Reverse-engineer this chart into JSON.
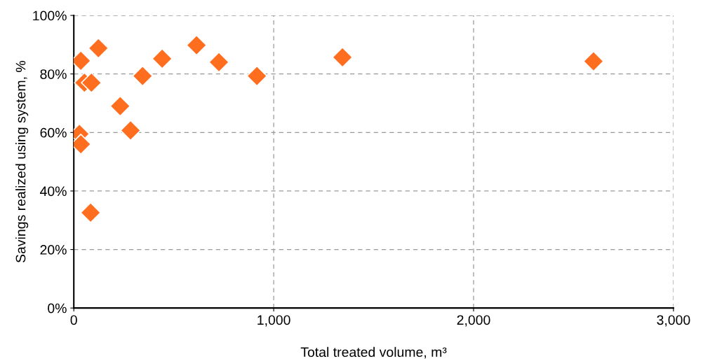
{
  "chart_data": {
    "type": "scatter",
    "xlabel": "Total treated volume, m³",
    "ylabel": "Savings realized using system, %",
    "series": [
      {
        "color": "#ff6d1f",
        "x": [
          35,
          123,
          614,
          442,
          726,
          1344,
          2600,
          916,
          344,
          53,
          88,
          232,
          284,
          28,
          35,
          84
        ],
        "values": [
          84.5,
          88.8,
          89.8,
          85.2,
          84.0,
          85.7,
          84.3,
          79.3,
          79.3,
          77,
          77,
          69,
          60.7,
          59.5,
          56,
          32.6
        ]
      }
    ],
    "xlim": [
      0,
      3000
    ],
    "xticks": [
      {
        "value": 0,
        "label": "0"
      },
      {
        "value": 1000,
        "label": "1,000"
      },
      {
        "value": 2000,
        "label": "2,000"
      },
      {
        "value": 3000,
        "label": "3,000"
      }
    ],
    "ylim": [
      0,
      100
    ],
    "yticks": [
      {
        "value": 0,
        "label": "0%"
      },
      {
        "value": 20,
        "label": "20%"
      },
      {
        "value": 40,
        "label": "40%"
      },
      {
        "value": 60,
        "label": "60%"
      },
      {
        "value": 80,
        "label": "80%"
      },
      {
        "value": 100,
        "label": "100%"
      }
    ],
    "grid": true,
    "marker": "diamond"
  }
}
